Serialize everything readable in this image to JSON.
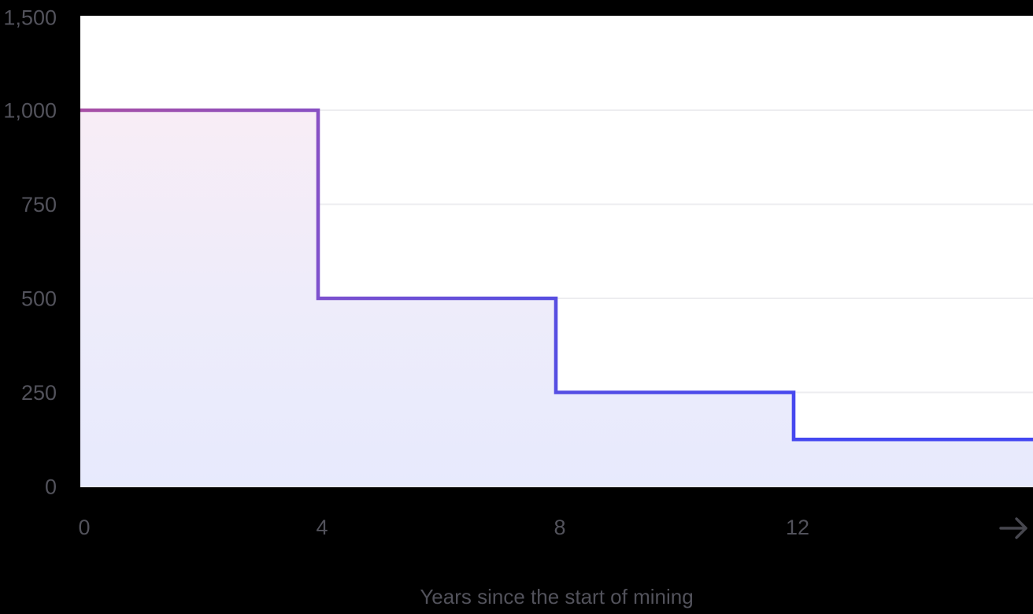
{
  "chart_data": {
    "type": "area",
    "variant": "step-after",
    "title": "",
    "xlabel": "Years since the start of mining",
    "ylabel": "",
    "x": [
      0,
      4,
      8,
      12,
      16
    ],
    "series": [
      {
        "name": "Mining reward",
        "values": [
          1000,
          500,
          250,
          125,
          125
        ]
      }
    ],
    "x_ticks": [
      {
        "value": 0,
        "label": "0"
      },
      {
        "value": 4,
        "label": "4"
      },
      {
        "value": 8,
        "label": "8"
      },
      {
        "value": 12,
        "label": "12"
      }
    ],
    "y_ticks": [
      {
        "value": 0,
        "label": "0"
      },
      {
        "value": 250,
        "label": "250"
      },
      {
        "value": 500,
        "label": "500"
      },
      {
        "value": 750,
        "label": "750"
      },
      {
        "value": 1000,
        "label": "1,000"
      },
      {
        "value": 1500,
        "label": "1,500"
      }
    ],
    "xlim": [
      0,
      16
    ],
    "ylim": [
      0,
      1500
    ],
    "grid": true,
    "legend": false,
    "icons": {
      "x_axis_arrow": "right-arrow"
    },
    "colors": {
      "background": "#000000",
      "plot_background": "#ffffff",
      "gridline": "#ededf0",
      "baseline": "#e8e8ed",
      "tick_label": "#52525b",
      "axis_title": "#52525b",
      "arrow": "#47474f",
      "line_gradient": [
        "#a84fa5",
        "#7e51cd",
        "#5a4fdf",
        "#4347f2"
      ],
      "fill_gradient": [
        "#f8edf6",
        "#eeecfa",
        "#e7eafd"
      ]
    }
  }
}
